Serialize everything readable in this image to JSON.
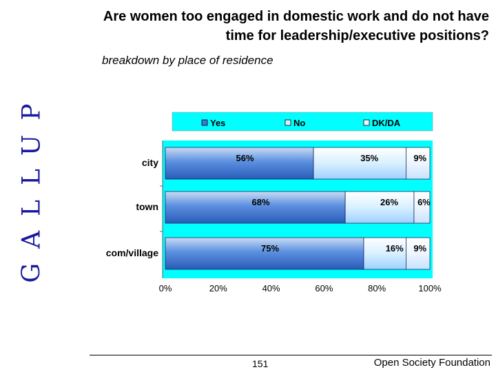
{
  "brand": {
    "text": "GALLUP",
    "color": "#1a1aa0"
  },
  "header": {
    "title_line1": "Are women too engaged in domestic work and do not have",
    "title_line2": "time for leadership/executive positions?",
    "subtitle": "breakdown by place of residence"
  },
  "footer": {
    "page": "151",
    "org": "Open Society Foundation"
  },
  "colors": {
    "plot_background": "#00ffff",
    "yes": "#3a7ad8",
    "no": "#d8f0ff",
    "dk": "#eef6ff"
  },
  "chart_data": {
    "type": "bar",
    "orientation": "horizontal",
    "stacked": true,
    "categories": [
      "city",
      "town",
      "com/village"
    ],
    "series": [
      {
        "name": "Yes",
        "values": [
          56,
          68,
          75
        ],
        "labels": [
          "56%",
          "68%",
          "75%"
        ]
      },
      {
        "name": "No",
        "values": [
          35,
          26,
          16
        ],
        "labels": [
          "35%",
          "26%",
          "16%"
        ]
      },
      {
        "name": "DK/DA",
        "values": [
          9,
          6,
          9
        ],
        "labels": [
          "9%",
          "6%",
          "9%"
        ]
      }
    ],
    "x_ticks": [
      "0%",
      "20%",
      "40%",
      "60%",
      "80%",
      "100%"
    ],
    "xlim": [
      0,
      100
    ],
    "legend_position": "top",
    "grid": false
  }
}
